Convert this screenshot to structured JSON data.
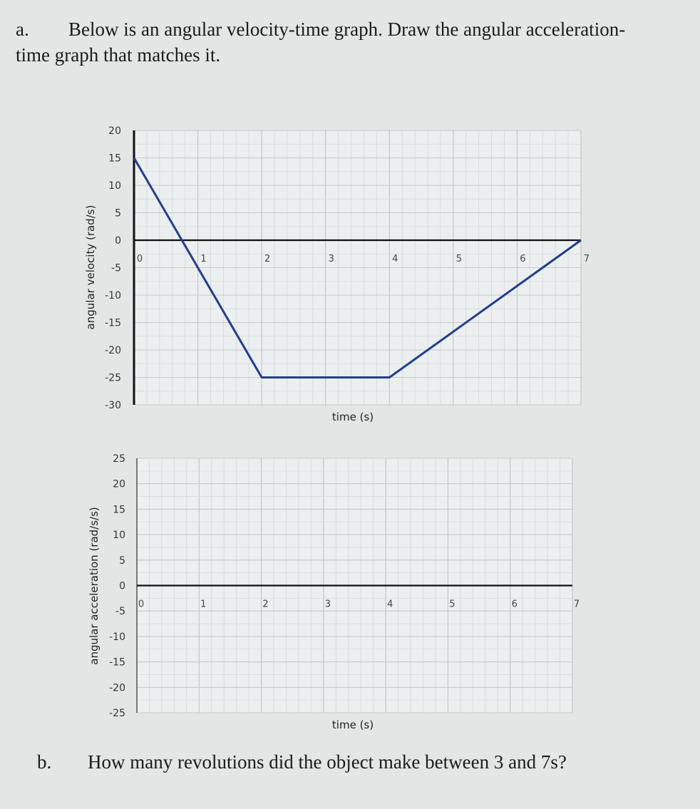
{
  "question": {
    "a_label": "a.",
    "a_line1": "Below is an angular velocity-time graph. Draw the angular acceleration-",
    "a_line2": "time graph that matches it.",
    "b_label": "b.",
    "b_text": "How many revolutions did the object make between 3 and 7s?"
  },
  "chart_data": [
    {
      "type": "line",
      "xlabel": "time (s)",
      "ylabel": "angular velocity (rad/s)",
      "xlim": [
        0,
        7
      ],
      "ylim": [
        -30,
        20
      ],
      "x_ticks": [
        0,
        1,
        2,
        3,
        4,
        5,
        6,
        7
      ],
      "y_ticks": [
        20,
        15,
        10,
        5,
        0,
        -5,
        -10,
        -15,
        -20,
        -25,
        -30
      ],
      "grid": true,
      "series": [
        {
          "x": [
            0,
            2,
            4,
            7
          ],
          "y": [
            15,
            -25,
            -25,
            0
          ],
          "color": "#1f3f8f"
        }
      ]
    },
    {
      "type": "line",
      "xlabel": "time (s)",
      "ylabel": "angular acceleration (rad/s/s)",
      "xlim": [
        0,
        7
      ],
      "ylim": [
        -25,
        25
      ],
      "x_ticks": [
        0,
        1,
        2,
        3,
        4,
        5,
        6,
        7
      ],
      "y_ticks": [
        25,
        20,
        15,
        10,
        5,
        0,
        -5,
        -10,
        -15,
        -20,
        -25
      ],
      "grid": true,
      "series": []
    }
  ]
}
